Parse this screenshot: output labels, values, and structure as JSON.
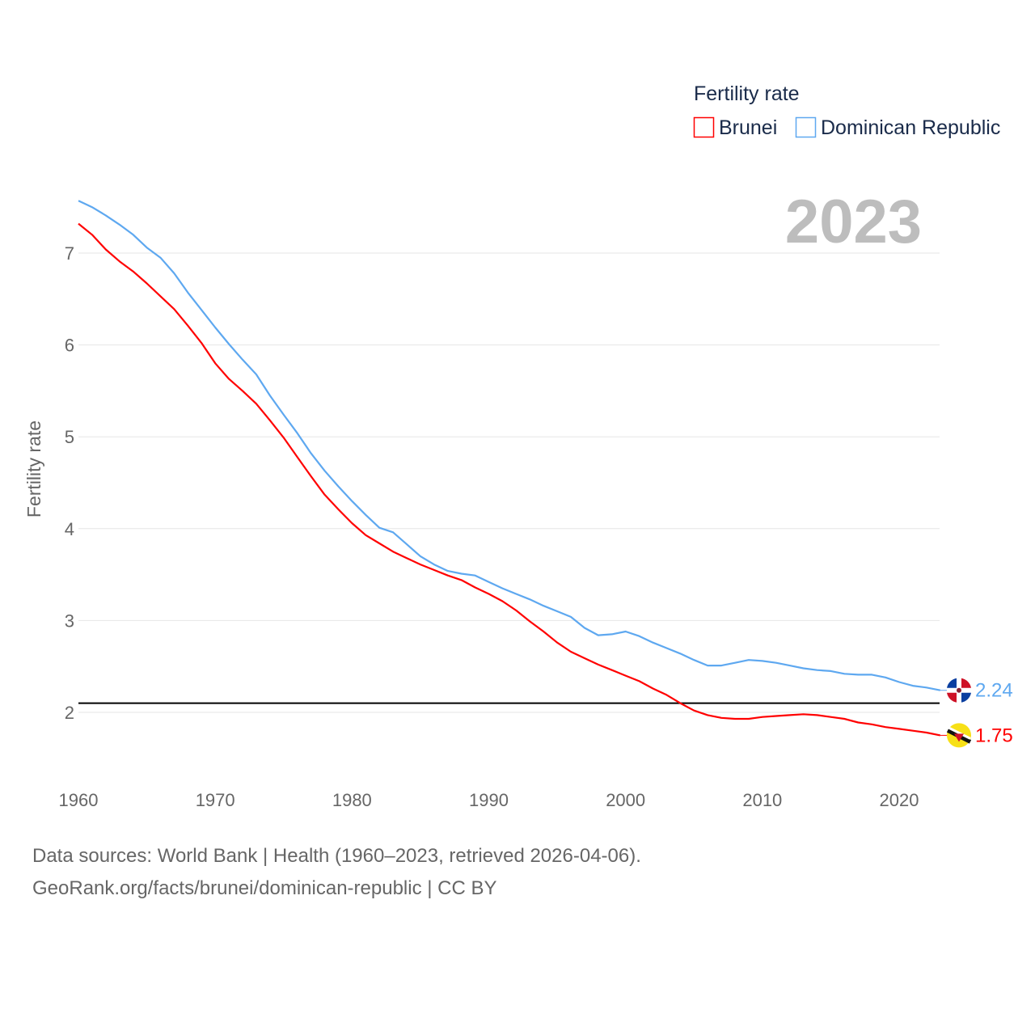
{
  "chart_data": {
    "type": "line",
    "title": "",
    "big_year_label": "2023",
    "xlabel": "",
    "ylabel": "Fertility rate",
    "xlim": [
      1960,
      2023
    ],
    "ylim": [
      1.4,
      7.6
    ],
    "x_ticks": [
      1960,
      1970,
      1980,
      1990,
      2000,
      2010,
      2020
    ],
    "y_ticks": [
      2,
      3,
      4,
      5,
      6,
      7
    ],
    "grid": true,
    "legend": {
      "title": "Fertility rate",
      "placement": "top-right"
    },
    "reference_line": {
      "y": 2.1,
      "color": "#000000"
    },
    "x": [
      1960,
      1961,
      1962,
      1963,
      1964,
      1965,
      1966,
      1967,
      1968,
      1969,
      1970,
      1971,
      1972,
      1973,
      1974,
      1975,
      1976,
      1977,
      1978,
      1979,
      1980,
      1981,
      1982,
      1983,
      1984,
      1985,
      1986,
      1987,
      1988,
      1989,
      1990,
      1991,
      1992,
      1993,
      1994,
      1995,
      1996,
      1997,
      1998,
      1999,
      2000,
      2001,
      2002,
      2003,
      2004,
      2005,
      2006,
      2007,
      2008,
      2009,
      2010,
      2011,
      2012,
      2013,
      2014,
      2015,
      2016,
      2017,
      2018,
      2019,
      2020,
      2021,
      2022,
      2023
    ],
    "series": [
      {
        "name": "Brunei",
        "color": "#ff0000",
        "flag": "brunei-flag",
        "last_label": "1.75",
        "values": [
          7.32,
          7.2,
          7.04,
          6.91,
          6.8,
          6.67,
          6.53,
          6.39,
          6.21,
          6.02,
          5.8,
          5.63,
          5.5,
          5.36,
          5.18,
          4.99,
          4.78,
          4.57,
          4.37,
          4.21,
          4.06,
          3.93,
          3.84,
          3.75,
          3.68,
          3.61,
          3.55,
          3.49,
          3.44,
          3.36,
          3.29,
          3.21,
          3.11,
          2.99,
          2.88,
          2.76,
          2.66,
          2.59,
          2.52,
          2.46,
          2.4,
          2.34,
          2.26,
          2.19,
          2.1,
          2.02,
          1.97,
          1.94,
          1.93,
          1.93,
          1.95,
          1.96,
          1.97,
          1.98,
          1.97,
          1.95,
          1.93,
          1.89,
          1.87,
          1.84,
          1.82,
          1.8,
          1.78,
          1.75
        ]
      },
      {
        "name": "Dominican Republic",
        "color": "#5ea8f0",
        "flag": "dominican-republic-flag",
        "last_label": "2.24",
        "values": [
          7.57,
          7.5,
          7.41,
          7.31,
          7.2,
          7.06,
          6.95,
          6.78,
          6.57,
          6.38,
          6.19,
          6.01,
          5.84,
          5.68,
          5.45,
          5.24,
          5.04,
          4.82,
          4.63,
          4.46,
          4.3,
          4.15,
          4.01,
          3.96,
          3.83,
          3.7,
          3.61,
          3.54,
          3.51,
          3.49,
          3.42,
          3.35,
          3.29,
          3.23,
          3.16,
          3.1,
          3.04,
          2.92,
          2.84,
          2.85,
          2.88,
          2.83,
          2.76,
          2.7,
          2.64,
          2.57,
          2.51,
          2.51,
          2.54,
          2.57,
          2.56,
          2.54,
          2.51,
          2.48,
          2.46,
          2.45,
          2.42,
          2.41,
          2.41,
          2.38,
          2.33,
          2.29,
          2.27,
          2.24
        ]
      }
    ]
  },
  "footer": {
    "line1": "Data sources: World Bank | Health (1960–2023, retrieved 2026-04-06).",
    "line2": "GeoRank.org/facts/brunei/dominican-republic | CC BY"
  }
}
